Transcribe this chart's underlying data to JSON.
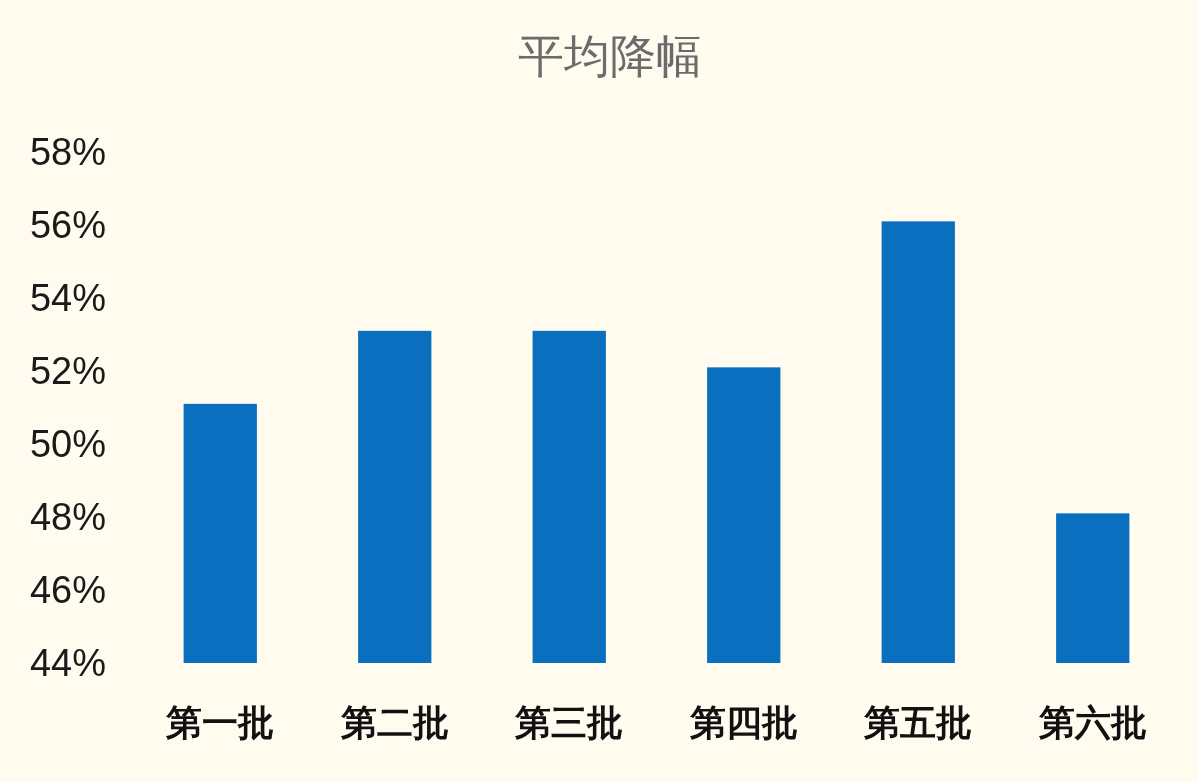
{
  "chart_data": {
    "type": "bar",
    "title": "平均降幅",
    "categories": [
      "第一批",
      "第二批",
      "第三批",
      "第四批",
      "第五批",
      "第六批"
    ],
    "values": [
      51.1,
      53.1,
      53.1,
      52.1,
      56.1,
      48.1
    ],
    "color": "#0b6fbf",
    "ylim": [
      44,
      58
    ],
    "yticks": [
      {
        "value": 44,
        "label": "44%"
      },
      {
        "value": 46,
        "label": "46%"
      },
      {
        "value": 48,
        "label": "48%"
      },
      {
        "value": 50,
        "label": "50%"
      },
      {
        "value": 52,
        "label": "52%"
      },
      {
        "value": 54,
        "label": "54%"
      },
      {
        "value": 56,
        "label": "56%"
      },
      {
        "value": 58,
        "label": "58%"
      }
    ],
    "grid": false
  }
}
